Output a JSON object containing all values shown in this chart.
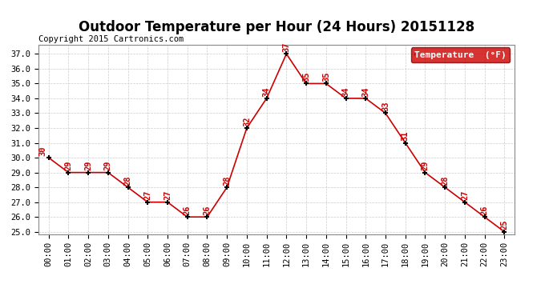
{
  "title": "Outdoor Temperature per Hour (24 Hours) 20151128",
  "copyright": "Copyright 2015 Cartronics.com",
  "legend_label": "Temperature  (°F)",
  "hours": [
    "00:00",
    "01:00",
    "02:00",
    "03:00",
    "04:00",
    "05:00",
    "06:00",
    "07:00",
    "08:00",
    "09:00",
    "10:00",
    "11:00",
    "12:00",
    "13:00",
    "14:00",
    "15:00",
    "16:00",
    "17:00",
    "18:00",
    "19:00",
    "20:00",
    "21:00",
    "22:00",
    "23:00"
  ],
  "temps": [
    30,
    29,
    29,
    29,
    28,
    27,
    27,
    26,
    26,
    28,
    32,
    34,
    37,
    35,
    35,
    34,
    34,
    33,
    31,
    29,
    28,
    27,
    26,
    25
  ],
  "ylim_min": 25.0,
  "ylim_max": 37.0,
  "line_color": "#cc0000",
  "marker_color": "#000000",
  "label_color": "#cc0000",
  "bg_color": "#ffffff",
  "grid_color": "#cccccc",
  "legend_bg": "#cc0000",
  "legend_text_color": "#ffffff",
  "title_fontsize": 12,
  "copyright_fontsize": 7.5,
  "tick_fontsize": 7.5,
  "label_fontsize": 7.5
}
